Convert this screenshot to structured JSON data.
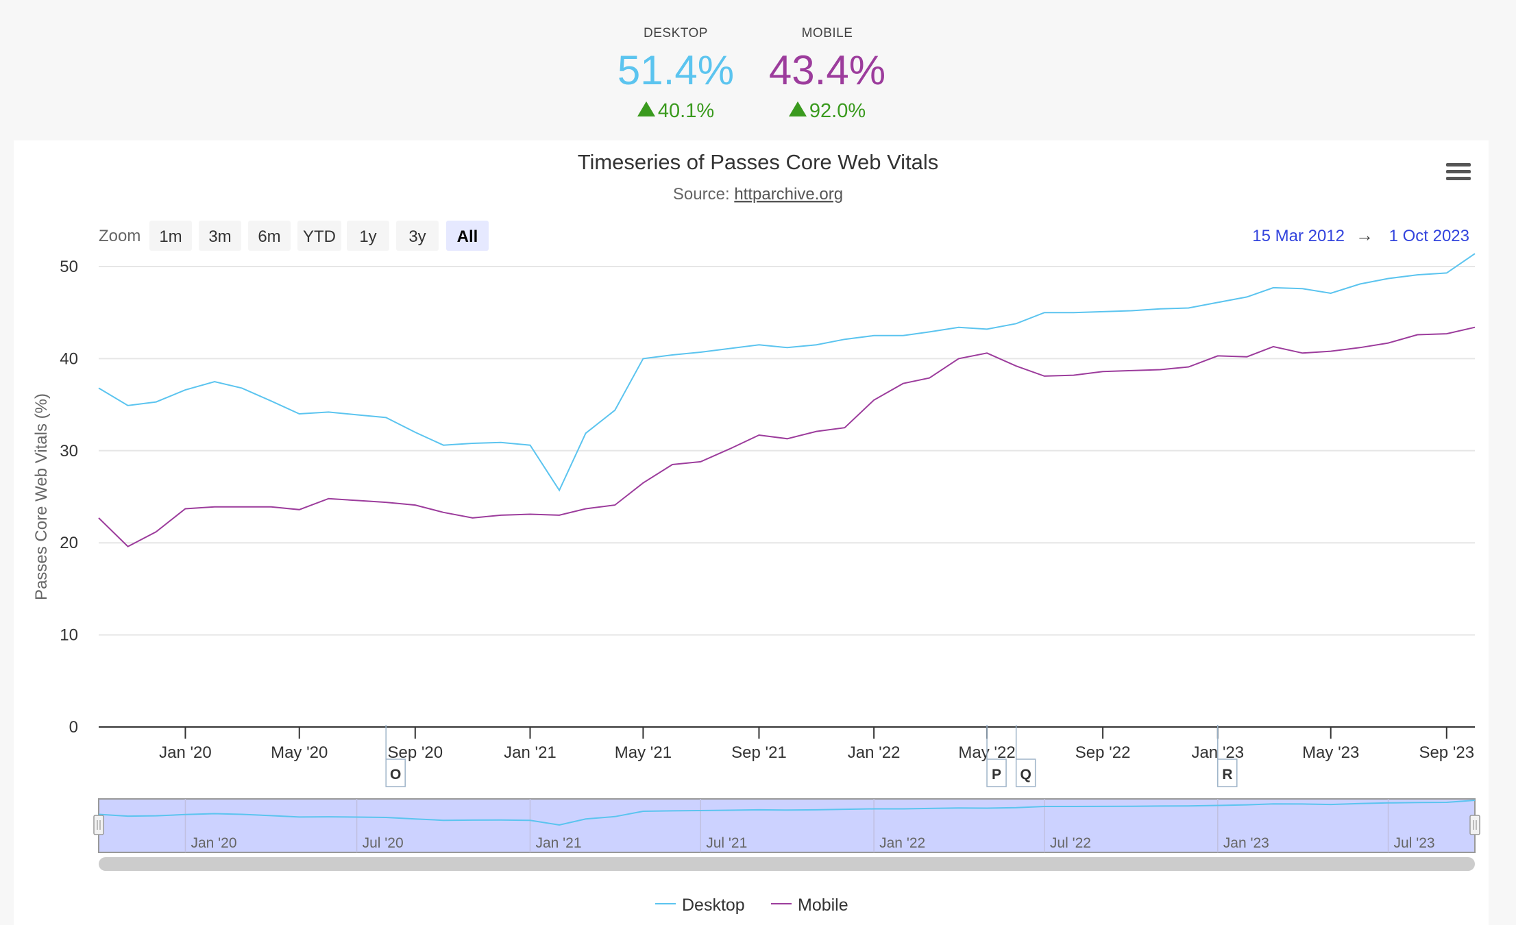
{
  "summary": {
    "desktop": {
      "label": "DESKTOP",
      "value": "51.4%",
      "change": "40.1%",
      "color": "#5bc4ef"
    },
    "mobile": {
      "label": "MOBILE",
      "value": "43.4%",
      "change": "92.0%",
      "color": "#9c3c9c"
    },
    "change_color": "#3a9a1e"
  },
  "toolbar": {
    "zoom_label": "Zoom",
    "buttons": [
      "1m",
      "3m",
      "6m",
      "YTD",
      "1y",
      "3y",
      "All"
    ],
    "selected": "All",
    "range_start": "15 Mar 2012",
    "range_arrow": "→",
    "range_end": "1 Oct 2023"
  },
  "menu_icon": "hamburger-menu-icon",
  "chart_data": {
    "type": "line",
    "title": "Timeseries of Passes Core Web Vitals",
    "subtitle_prefix": "Source: ",
    "subtitle_link": "httparchive.org",
    "ylabel": "Passes Core Web Vitals (%)",
    "ylim": [
      0,
      50
    ],
    "yticks": [
      0,
      10,
      20,
      30,
      40,
      50
    ],
    "xlim": [
      "2019-10-01",
      "2023-10-01"
    ],
    "xticks": [
      "Jan '20",
      "May '20",
      "Sep '20",
      "Jan '21",
      "May '21",
      "Sep '21",
      "Jan '22",
      "May '22",
      "Sep '22",
      "Jan '23",
      "May '23",
      "Sep '23"
    ],
    "legend_position": "bottom-center",
    "grid": true,
    "x": [
      "2019-10-01",
      "2019-11-01",
      "2019-12-01",
      "2020-01-01",
      "2020-02-01",
      "2020-03-01",
      "2020-04-01",
      "2020-05-01",
      "2020-06-01",
      "2020-07-01",
      "2020-08-01",
      "2020-09-01",
      "2020-10-01",
      "2020-11-01",
      "2020-12-01",
      "2021-01-01",
      "2021-02-01",
      "2021-03-01",
      "2021-04-01",
      "2021-05-01",
      "2021-06-01",
      "2021-07-01",
      "2021-08-01",
      "2021-09-01",
      "2021-10-01",
      "2021-11-01",
      "2021-12-01",
      "2022-01-01",
      "2022-02-01",
      "2022-03-01",
      "2022-04-01",
      "2022-05-01",
      "2022-06-01",
      "2022-07-01",
      "2022-08-01",
      "2022-09-01",
      "2022-10-01",
      "2022-11-01",
      "2022-12-01",
      "2023-01-01",
      "2023-02-01",
      "2023-03-01",
      "2023-04-01",
      "2023-05-01",
      "2023-06-01",
      "2023-07-01",
      "2023-08-01",
      "2023-09-01",
      "2023-10-01"
    ],
    "series": [
      {
        "name": "Desktop",
        "color": "#5bc4ef",
        "values": [
          36.8,
          34.9,
          35.3,
          36.6,
          37.5,
          36.8,
          35.4,
          34.0,
          34.2,
          33.9,
          33.6,
          32.0,
          30.6,
          30.8,
          30.9,
          30.6,
          25.7,
          31.9,
          34.4,
          40.0,
          40.4,
          40.7,
          41.1,
          41.5,
          41.2,
          41.5,
          42.1,
          42.5,
          42.5,
          42.9,
          43.4,
          43.2,
          43.8,
          45.0,
          45.0,
          45.1,
          45.2,
          45.4,
          45.5,
          46.1,
          46.7,
          47.7,
          47.6,
          47.1,
          48.1,
          48.7,
          49.1,
          49.3,
          51.4
        ]
      },
      {
        "name": "Mobile",
        "color": "#9c3c9c",
        "values": [
          22.7,
          19.6,
          21.2,
          23.7,
          23.9,
          23.9,
          23.9,
          23.6,
          24.8,
          24.6,
          24.4,
          24.1,
          23.3,
          22.7,
          23.0,
          23.1,
          23.0,
          23.7,
          24.1,
          26.5,
          28.5,
          28.8,
          30.2,
          31.7,
          31.3,
          32.1,
          32.5,
          35.5,
          37.3,
          37.9,
          40.0,
          40.6,
          39.2,
          38.1,
          38.2,
          38.6,
          38.7,
          38.8,
          39.1,
          40.3,
          40.2,
          41.3,
          40.6,
          40.8,
          41.2,
          41.7,
          42.6,
          42.7,
          43.4
        ]
      }
    ],
    "flags": [
      {
        "text": "O",
        "date": "2020-08-01"
      },
      {
        "text": "P",
        "date": "2022-05-01"
      },
      {
        "text": "Q",
        "date": "2022-06-01"
      },
      {
        "text": "R",
        "date": "2023-01-01"
      }
    ],
    "navigator": {
      "xticks": [
        "Jan '20",
        "Jul '20",
        "Jan '21",
        "Jul '21",
        "Jan '22",
        "Jul '22",
        "Jan '23",
        "Jul '23"
      ],
      "series": "Desktop"
    }
  }
}
